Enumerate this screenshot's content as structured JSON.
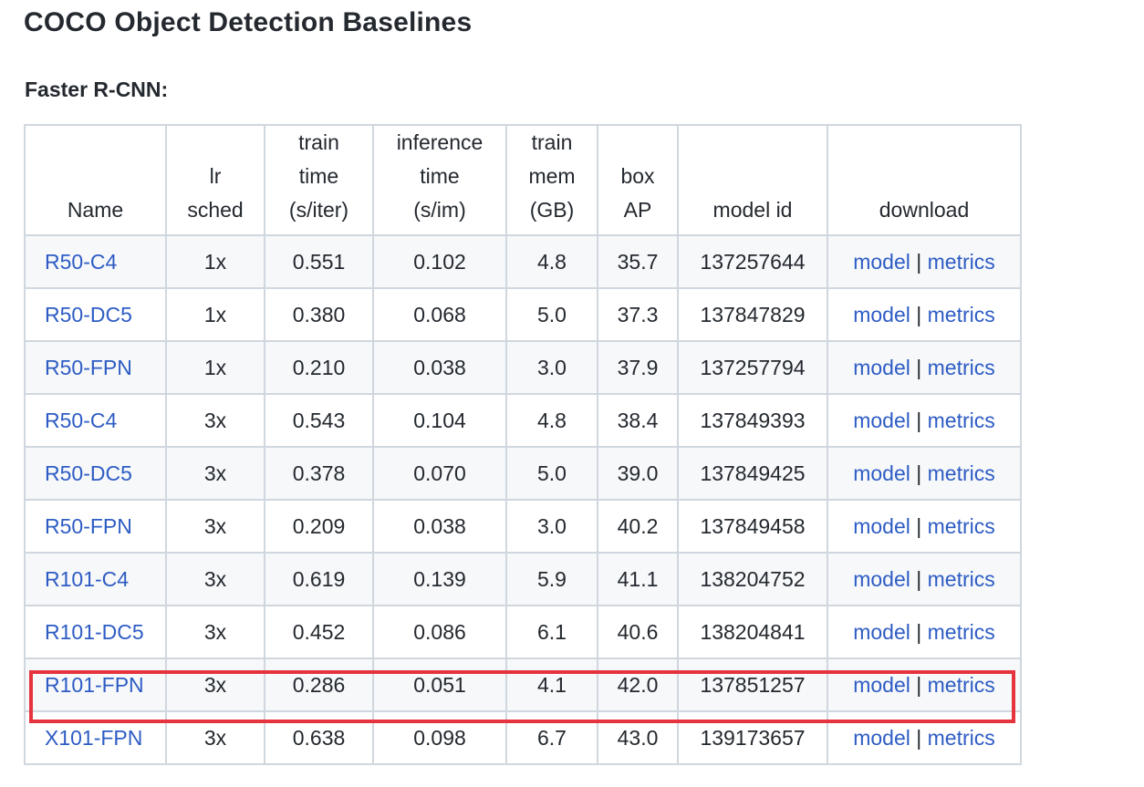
{
  "page_title": "COCO Object Detection Baselines",
  "section_title": "Faster R-CNN:",
  "table": {
    "headers": [
      {
        "key": "name",
        "lines": [
          "Name"
        ]
      },
      {
        "key": "lr_sched",
        "lines": [
          "lr",
          "sched"
        ]
      },
      {
        "key": "train_time",
        "lines": [
          "train",
          "time",
          "(s/iter)"
        ]
      },
      {
        "key": "inference_time",
        "lines": [
          "inference",
          "time",
          "(s/im)"
        ]
      },
      {
        "key": "train_mem",
        "lines": [
          "train",
          "mem",
          "(GB)"
        ]
      },
      {
        "key": "box_ap",
        "lines": [
          "box",
          "AP"
        ]
      },
      {
        "key": "model_id",
        "lines": [
          "model id"
        ]
      },
      {
        "key": "download",
        "lines": [
          "download"
        ]
      }
    ],
    "rows": [
      {
        "name": "R50-C4",
        "lr_sched": "1x",
        "train_time": "0.551",
        "inference_time": "0.102",
        "train_mem": "4.8",
        "box_ap": "35.7",
        "model_id": "137257644",
        "model_link": "model",
        "separator": "|",
        "metrics_link": "metrics",
        "highlighted": false
      },
      {
        "name": "R50-DC5",
        "lr_sched": "1x",
        "train_time": "0.380",
        "inference_time": "0.068",
        "train_mem": "5.0",
        "box_ap": "37.3",
        "model_id": "137847829",
        "model_link": "model",
        "separator": "|",
        "metrics_link": "metrics",
        "highlighted": false
      },
      {
        "name": "R50-FPN",
        "lr_sched": "1x",
        "train_time": "0.210",
        "inference_time": "0.038",
        "train_mem": "3.0",
        "box_ap": "37.9",
        "model_id": "137257794",
        "model_link": "model",
        "separator": "|",
        "metrics_link": "metrics",
        "highlighted": false
      },
      {
        "name": "R50-C4",
        "lr_sched": "3x",
        "train_time": "0.543",
        "inference_time": "0.104",
        "train_mem": "4.8",
        "box_ap": "38.4",
        "model_id": "137849393",
        "model_link": "model",
        "separator": "|",
        "metrics_link": "metrics",
        "highlighted": false
      },
      {
        "name": "R50-DC5",
        "lr_sched": "3x",
        "train_time": "0.378",
        "inference_time": "0.070",
        "train_mem": "5.0",
        "box_ap": "39.0",
        "model_id": "137849425",
        "model_link": "model",
        "separator": "|",
        "metrics_link": "metrics",
        "highlighted": false
      },
      {
        "name": "R50-FPN",
        "lr_sched": "3x",
        "train_time": "0.209",
        "inference_time": "0.038",
        "train_mem": "3.0",
        "box_ap": "40.2",
        "model_id": "137849458",
        "model_link": "model",
        "separator": "|",
        "metrics_link": "metrics",
        "highlighted": false
      },
      {
        "name": "R101-C4",
        "lr_sched": "3x",
        "train_time": "0.619",
        "inference_time": "0.139",
        "train_mem": "5.9",
        "box_ap": "41.1",
        "model_id": "138204752",
        "model_link": "model",
        "separator": "|",
        "metrics_link": "metrics",
        "highlighted": false
      },
      {
        "name": "R101-DC5",
        "lr_sched": "3x",
        "train_time": "0.452",
        "inference_time": "0.086",
        "train_mem": "6.1",
        "box_ap": "40.6",
        "model_id": "138204841",
        "model_link": "model",
        "separator": "|",
        "metrics_link": "metrics",
        "highlighted": false
      },
      {
        "name": "R101-FPN",
        "lr_sched": "3x",
        "train_time": "0.286",
        "inference_time": "0.051",
        "train_mem": "4.1",
        "box_ap": "42.0",
        "model_id": "137851257",
        "model_link": "model",
        "separator": "|",
        "metrics_link": "metrics",
        "highlighted": true
      },
      {
        "name": "X101-FPN",
        "lr_sched": "3x",
        "train_time": "0.638",
        "inference_time": "0.098",
        "train_mem": "6.7",
        "box_ap": "43.0",
        "model_id": "139173657",
        "model_link": "model",
        "separator": "|",
        "metrics_link": "metrics",
        "highlighted": false
      }
    ]
  },
  "colors": {
    "link": "#2e5cc4",
    "text": "#24292f",
    "border": "#d0d7de",
    "stripe": "#f6f8fa",
    "highlight_outline": "#e5343d"
  }
}
